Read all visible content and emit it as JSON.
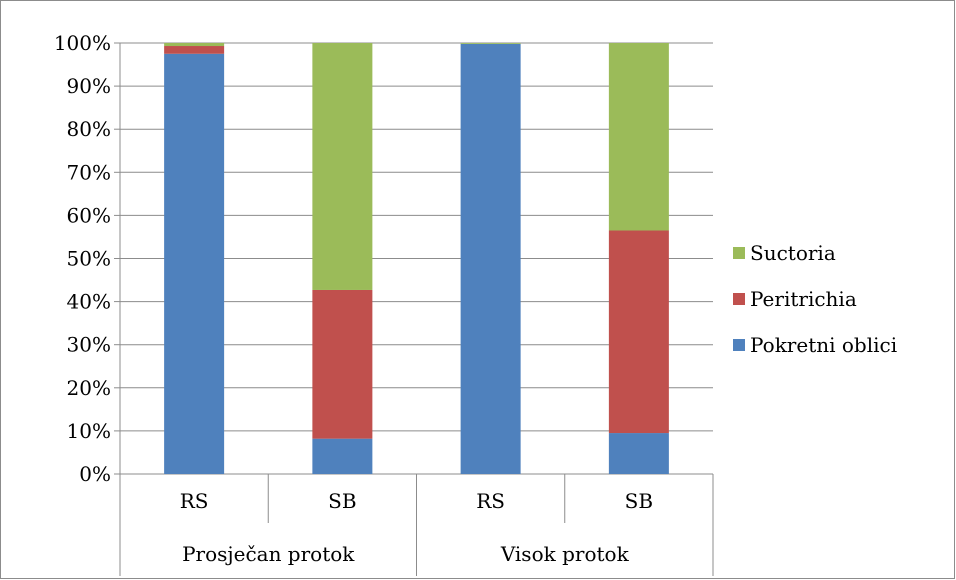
{
  "chart_data": {
    "type": "bar",
    "stacked": "percent",
    "categories": [
      "RS",
      "SB",
      "RS",
      "SB"
    ],
    "groups": [
      {
        "label": "Prosječan protok",
        "span": 2
      },
      {
        "label": "Visok protok",
        "span": 2
      }
    ],
    "series": [
      {
        "name": "Pokretni oblici",
        "color": "#4f81bd",
        "values": [
          97.5,
          8.2,
          99.8,
          9.5
        ]
      },
      {
        "name": "Peritrichia",
        "color": "#c0504d",
        "values": [
          1.8,
          34.5,
          0.0,
          47.0
        ]
      },
      {
        "name": "Suctoria",
        "color": "#9bbb59",
        "values": [
          0.7,
          57.3,
          0.2,
          43.5
        ]
      }
    ],
    "y_ticks": [
      "0%",
      "10%",
      "20%",
      "30%",
      "40%",
      "50%",
      "60%",
      "70%",
      "80%",
      "90%",
      "100%"
    ],
    "ylim": [
      0,
      100
    ],
    "legend_order": [
      "Suctoria",
      "Peritrichia",
      "Pokretni oblici"
    ],
    "legend_position": "right",
    "grid": true
  }
}
